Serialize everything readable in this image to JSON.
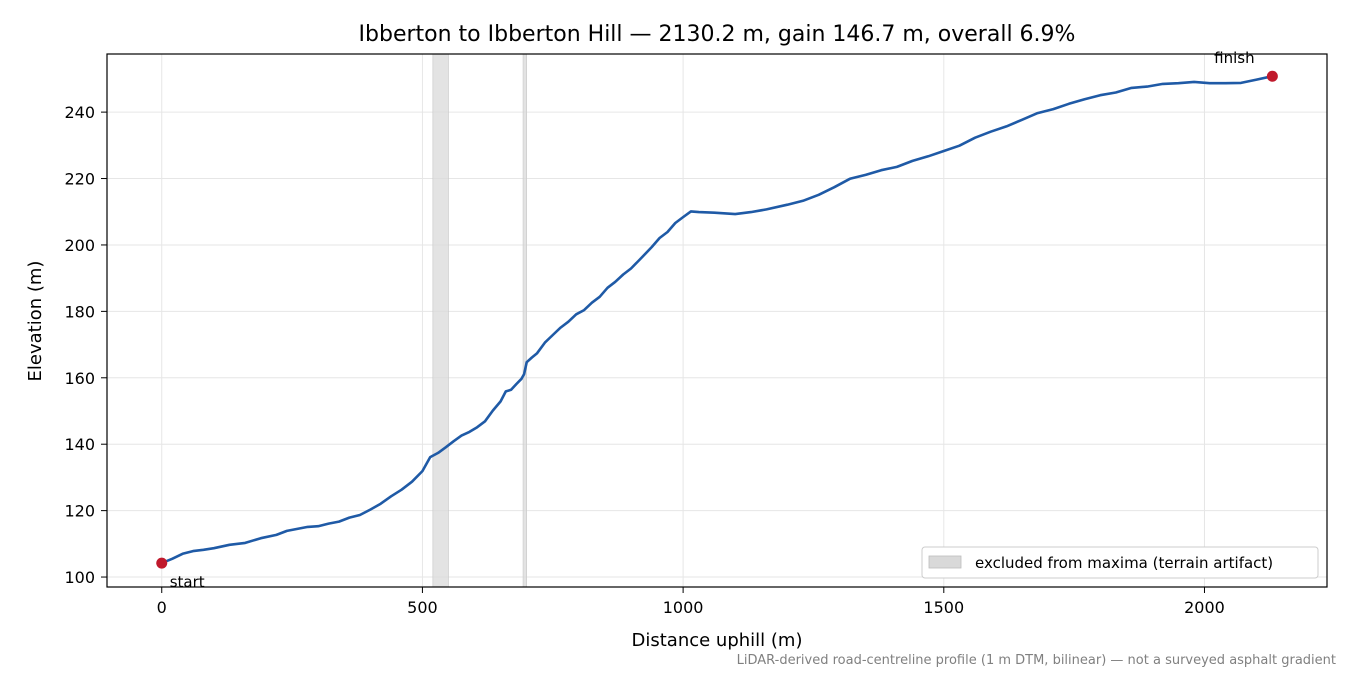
{
  "chart_data": {
    "type": "line",
    "title": "Ibberton to Ibberton Hill — 2130.2 m, gain 146.7 m, overall 6.9%",
    "xlabel": "Distance uphill (m)",
    "ylabel": "Elevation (m)",
    "xlim": [
      -105,
      2235
    ],
    "ylim": [
      97,
      257.5
    ],
    "x_ticks": [
      0,
      500,
      1000,
      1500,
      2000
    ],
    "y_ticks": [
      100,
      120,
      140,
      160,
      180,
      200,
      220,
      240
    ],
    "grid": true,
    "legend_position": "lower right",
    "series": [
      {
        "color": "#1f5aa6",
        "points": [
          [
            0,
            104.2
          ],
          [
            20,
            105.5
          ],
          [
            40,
            107.0
          ],
          [
            60,
            107.8
          ],
          [
            80,
            108.2
          ],
          [
            100,
            108.8
          ],
          [
            130,
            109.6
          ],
          [
            160,
            110.4
          ],
          [
            190,
            111.6
          ],
          [
            220,
            112.8
          ],
          [
            240,
            113.8
          ],
          [
            260,
            114.6
          ],
          [
            280,
            115.0
          ],
          [
            300,
            115.4
          ],
          [
            320,
            116.0
          ],
          [
            340,
            116.8
          ],
          [
            360,
            117.8
          ],
          [
            380,
            118.8
          ],
          [
            400,
            120.2
          ],
          [
            420,
            122.2
          ],
          [
            440,
            124.2
          ],
          [
            460,
            126.4
          ],
          [
            480,
            128.6
          ],
          [
            500,
            132.0
          ],
          [
            515,
            136.0
          ],
          [
            530,
            137.5
          ],
          [
            545,
            139.0
          ],
          [
            560,
            141.0
          ],
          [
            575,
            142.5
          ],
          [
            590,
            143.8
          ],
          [
            605,
            145.0
          ],
          [
            620,
            147.0
          ],
          [
            635,
            150.0
          ],
          [
            650,
            153.0
          ],
          [
            660,
            155.8
          ],
          [
            670,
            156.5
          ],
          [
            680,
            158.0
          ],
          [
            690,
            159.8
          ],
          [
            695,
            161.0
          ],
          [
            700,
            164.8
          ],
          [
            710,
            166.0
          ],
          [
            720,
            167.5
          ],
          [
            735,
            170.5
          ],
          [
            750,
            173.0
          ],
          [
            765,
            175.0
          ],
          [
            780,
            177.0
          ],
          [
            795,
            179.0
          ],
          [
            810,
            180.5
          ],
          [
            825,
            182.5
          ],
          [
            840,
            184.5
          ],
          [
            855,
            187.0
          ],
          [
            870,
            189.0
          ],
          [
            885,
            191.0
          ],
          [
            900,
            193.0
          ],
          [
            920,
            196.0
          ],
          [
            940,
            199.5
          ],
          [
            955,
            202.0
          ],
          [
            970,
            204.0
          ],
          [
            985,
            206.5
          ],
          [
            1000,
            208.5
          ],
          [
            1015,
            210.0
          ],
          [
            1030,
            210.0
          ],
          [
            1060,
            209.6
          ],
          [
            1100,
            209.4
          ],
          [
            1130,
            209.8
          ],
          [
            1160,
            210.8
          ],
          [
            1200,
            212.0
          ],
          [
            1230,
            213.4
          ],
          [
            1260,
            215.0
          ],
          [
            1290,
            217.5
          ],
          [
            1320,
            219.8
          ],
          [
            1350,
            221.2
          ],
          [
            1380,
            222.4
          ],
          [
            1410,
            223.6
          ],
          [
            1440,
            225.2
          ],
          [
            1470,
            226.8
          ],
          [
            1500,
            228.2
          ],
          [
            1530,
            230.0
          ],
          [
            1560,
            232.2
          ],
          [
            1590,
            234.2
          ],
          [
            1620,
            235.6
          ],
          [
            1650,
            237.8
          ],
          [
            1680,
            239.6
          ],
          [
            1710,
            241.0
          ],
          [
            1740,
            242.4
          ],
          [
            1770,
            244.0
          ],
          [
            1800,
            245.0
          ],
          [
            1830,
            246.0
          ],
          [
            1860,
            247.2
          ],
          [
            1890,
            247.8
          ],
          [
            1920,
            248.4
          ],
          [
            1950,
            248.8
          ],
          [
            1980,
            249.0
          ],
          [
            2010,
            248.8
          ],
          [
            2040,
            248.6
          ],
          [
            2070,
            248.8
          ],
          [
            2100,
            249.8
          ],
          [
            2130.2,
            250.8
          ]
        ]
      }
    ],
    "endpoints": [
      {
        "label": "start",
        "x": 0,
        "y": 104.2,
        "color": "#c0192c"
      },
      {
        "label": "finish",
        "x": 2130.2,
        "y": 250.8,
        "color": "#c0192c"
      }
    ],
    "excluded_regions": [
      [
        520,
        550
      ],
      [
        693,
        700
      ]
    ],
    "legend": {
      "excluded_label": "excluded from maxima (terrain artifact)",
      "swatch_color": "#d9d9d9"
    },
    "footnote": "LiDAR-derived road-centreline profile (1 m DTM, bilinear) — not a surveyed asphalt gradient"
  }
}
